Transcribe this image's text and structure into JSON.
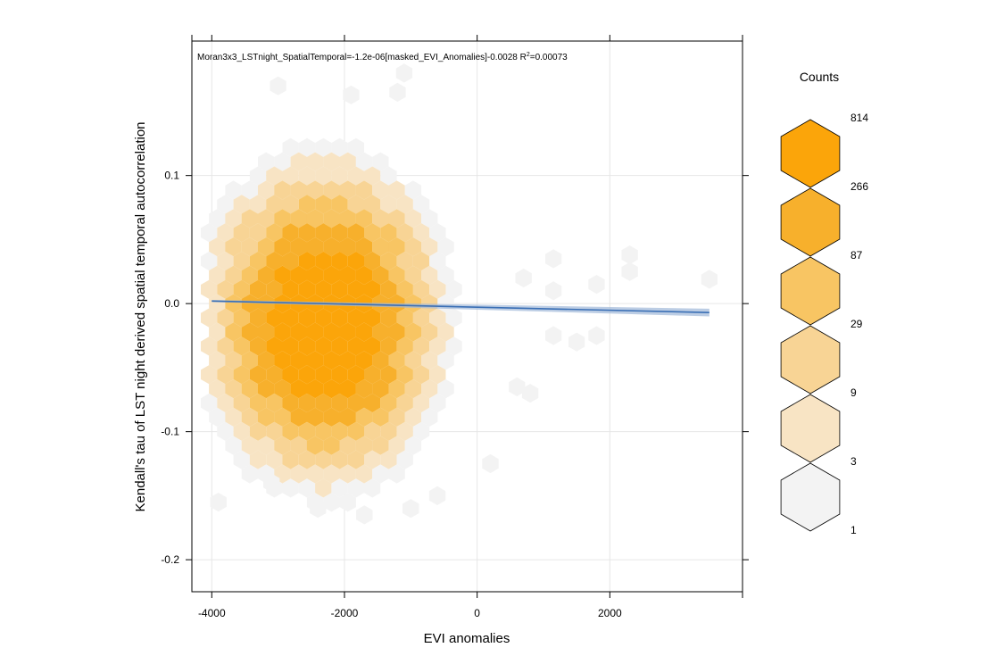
{
  "chart_data": {
    "type": "hexbin",
    "xlabel": "EVI anomalies",
    "ylabel": "Kendall's tau of LST night derived spatial temporal autocorrelation",
    "annotation": {
      "prefix": "Moran3x3_LSTnight_SpatialTemporal=-1.2e-06[masked_EVI_Anomalies]-0.0028 R",
      "sup": "2",
      "suffix": "=0.00073"
    },
    "xlim": [
      -4300,
      4000
    ],
    "ylim": [
      -0.225,
      0.205
    ],
    "x_ticks": [
      -4000,
      -2000,
      0,
      2000
    ],
    "x_tick_labels": [
      "-4000",
      "-2000",
      "0",
      "2000"
    ],
    "y_ticks": [
      -0.2,
      -0.1,
      0.0,
      0.1
    ],
    "y_tick_labels": [
      "-0.2",
      "-0.1",
      "0.0",
      "0.1"
    ],
    "grid": true,
    "regression": {
      "slope": -1.2e-06,
      "intercept": -0.0028,
      "r_squared": 0.00073,
      "x_range": [
        -4000,
        3500
      ],
      "color": "#3a6fb5"
    },
    "bin_level_colors": [
      "#f3f3f3",
      "#f8e4c4",
      "#f8d495",
      "#f8c563",
      "#f7b02c",
      "#fba50a"
    ],
    "legend": {
      "title": "Counts",
      "position": "right",
      "breaks": [
        "814",
        "266",
        "87",
        "29",
        "9",
        "3",
        "1"
      ],
      "colors": [
        "#fba50a",
        "#f7b02c",
        "#f8c563",
        "#f8d495",
        "#f8e4c4",
        "#f3f3f3"
      ]
    },
    "level_meaning": "bins level 0..5 = counts 1-3, 3-9, 9-29, 29-87, 87-266, 266-814",
    "bins": {
      "center": [
        -2300,
        -0.015
      ],
      "core_radius_x": 1350,
      "core_radius_y": 0.095,
      "outer_points": [
        [
          -3000,
          0.17
        ],
        [
          -1900,
          0.163
        ],
        [
          -1100,
          0.18
        ],
        [
          -1200,
          0.165
        ],
        [
          700,
          0.02
        ],
        [
          1150,
          0.035
        ],
        [
          1150,
          0.01
        ],
        [
          1150,
          -0.025
        ],
        [
          1500,
          -0.03
        ],
        [
          1800,
          -0.025
        ],
        [
          2300,
          0.038
        ],
        [
          2300,
          0.025
        ],
        [
          1800,
          0.015
        ],
        [
          3500,
          0.019
        ],
        [
          200,
          -0.125
        ],
        [
          800,
          -0.07
        ],
        [
          600,
          -0.065
        ],
        [
          -2400,
          -0.16
        ],
        [
          -1700,
          -0.165
        ],
        [
          -3900,
          -0.155
        ],
        [
          -3100,
          -0.14
        ],
        [
          -1000,
          -0.16
        ],
        [
          -600,
          -0.15
        ]
      ]
    }
  }
}
